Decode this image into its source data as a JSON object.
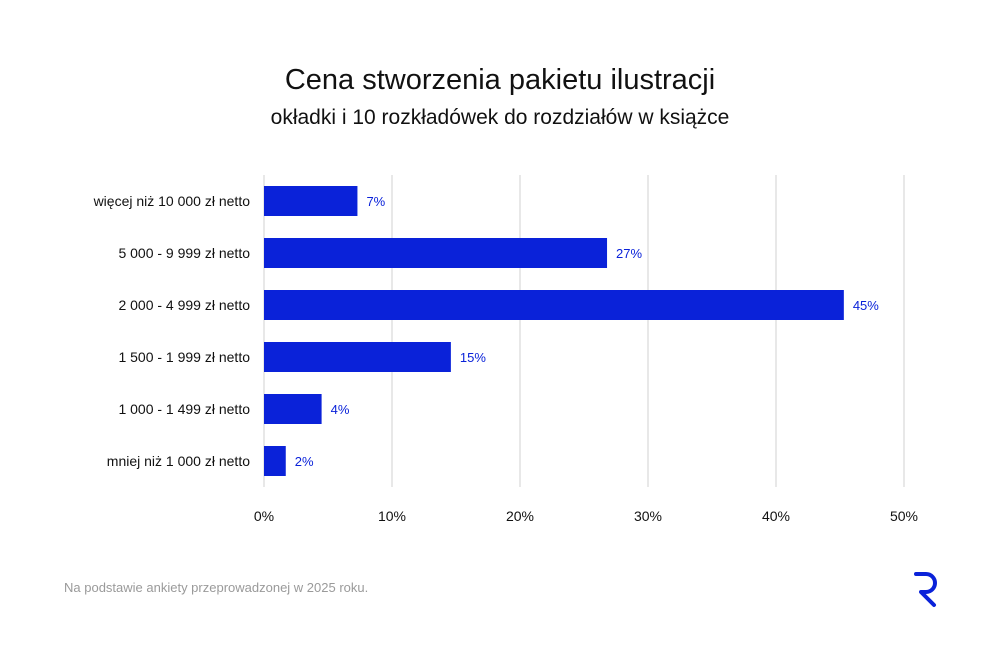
{
  "title": "Cena stworzenia pakietu ilustracji",
  "subtitle": "okładki i 10 rozkładówek do rozdziałów w książce",
  "footnote": "Na podstawie ankiety przeprowadzonej w 2025 roku.",
  "logo_icon": "r-brand-logo-icon",
  "colors": {
    "bar": "#0a22d9",
    "value_label": "#0a22d9",
    "grid": "#d9d9d9",
    "text": "#111111",
    "footnote": "#9a9a9a"
  },
  "chart_data": {
    "type": "bar",
    "orientation": "horizontal",
    "title": "Cena stworzenia pakietu ilustracji",
    "subtitle": "okładki i 10 rozkładówek do rozdziałów w książce",
    "categories": [
      "więcej niż 10 000 zł netto",
      "5 000 - 9 999 zł netto",
      "2 000 - 4 999 zł netto",
      "1 500 - 1 999 zł netto",
      "1 000 - 1 499 zł netto",
      "mniej niż 1 000 zł netto"
    ],
    "values": [
      7.3,
      26.8,
      45.3,
      14.6,
      4.5,
      1.7
    ],
    "value_labels": [
      "7%",
      "27%",
      "45%",
      "15%",
      "4%",
      "2%"
    ],
    "xlim": [
      0,
      50
    ],
    "x_ticks": [
      0,
      10,
      20,
      30,
      40,
      50
    ],
    "x_tick_labels": [
      "0%",
      "10%",
      "20%",
      "30%",
      "40%",
      "50%"
    ],
    "xlabel": "",
    "ylabel": "",
    "grid": "vertical",
    "legend": "none"
  }
}
